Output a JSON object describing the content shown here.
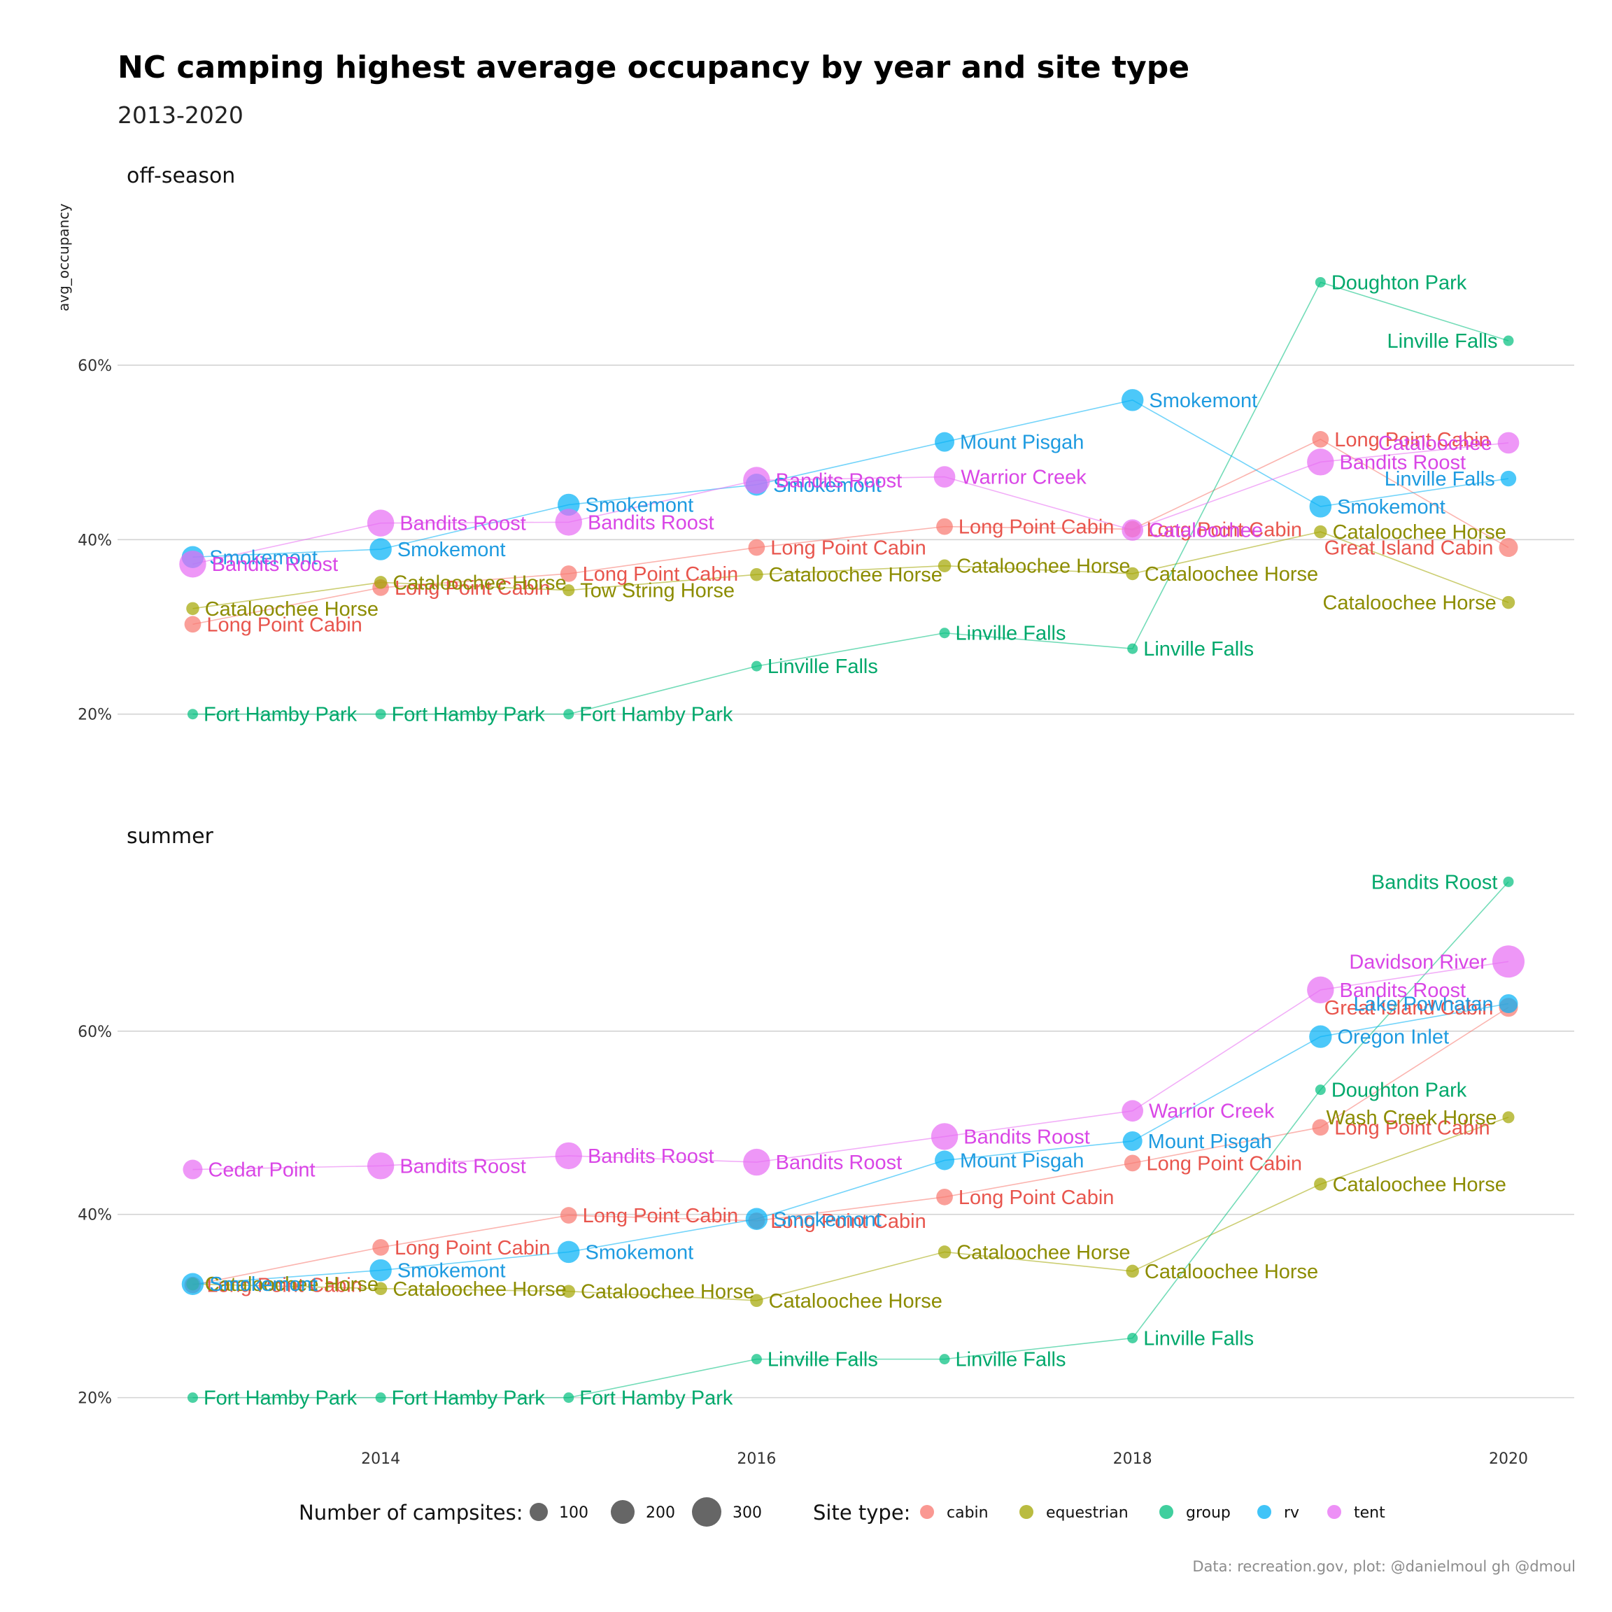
{
  "chart_data": {
    "type": "scatter",
    "title": "NC camping highest average occupancy by year and site type",
    "subtitle": "2013-2020",
    "ylabel": "avg_occupancy",
    "caption": "Data: recreation.gov, plot: @danielmoul gh @dmoul",
    "x_ticks": [
      2014,
      2016,
      2018,
      2020
    ],
    "y_ticks": [
      20,
      40,
      60
    ],
    "y_tick_labels": [
      "20%",
      "40%",
      "60%"
    ],
    "xlim": [
      2012.6,
      2020.35
    ],
    "colors": {
      "cabin": "#F8766D",
      "equestrian": "#A3A500",
      "group": "#00BF7D",
      "rv": "#00B0F6",
      "tent": "#E76BF3"
    },
    "label_colors": {
      "cabin": "#E8554D",
      "equestrian": "#8C8C00",
      "group": "#00A86B",
      "rv": "#1E9BE0",
      "tent": "#D946E6"
    },
    "legend": {
      "size_title": "Number of campsites:",
      "size_levels": [
        100,
        200,
        300
      ],
      "color_title": "Site type:",
      "site_types": [
        "cabin",
        "equestrian",
        "group",
        "rv",
        "tent"
      ]
    },
    "panels": [
      {
        "name": "off-season",
        "ylim": [
          13,
          79
        ],
        "series": [
          {
            "type": "cabin",
            "points": [
              {
                "x": 2013,
                "y": 30.3,
                "label": "Long Point Cabin",
                "size": 60
              },
              {
                "x": 2014,
                "y": 34.5,
                "label": "Long Point Cabin",
                "size": 60
              },
              {
                "x": 2015,
                "y": 36.1,
                "label": "Long Point Cabin",
                "size": 60
              },
              {
                "x": 2016,
                "y": 39.1,
                "label": "Long Point Cabin",
                "size": 60
              },
              {
                "x": 2017,
                "y": 41.5,
                "label": "Long Point Cabin",
                "size": 60
              },
              {
                "x": 2018,
                "y": 41.2,
                "label": "Long Point Cabin",
                "size": 60
              },
              {
                "x": 2019,
                "y": 51.5,
                "label": "Long Point Cabin",
                "size": 60
              },
              {
                "x": 2020,
                "y": 39.1,
                "label": "Great Island Cabin",
                "size": 90
              }
            ]
          },
          {
            "type": "equestrian",
            "points": [
              {
                "x": 2013,
                "y": 32.1,
                "label": "Cataloochee Horse",
                "size": 25
              },
              {
                "x": 2014,
                "y": 35.1,
                "label": "Cataloochee Horse",
                "size": 25
              },
              {
                "x": 2015,
                "y": 34.2,
                "label": "Tow String Horse",
                "size": 18
              },
              {
                "x": 2016,
                "y": 36.0,
                "label": "Cataloochee Horse",
                "size": 25
              },
              {
                "x": 2017,
                "y": 37.0,
                "label": "Cataloochee Horse",
                "size": 25
              },
              {
                "x": 2018,
                "y": 36.1,
                "label": "Cataloochee Horse",
                "size": 25
              },
              {
                "x": 2019,
                "y": 40.9,
                "label": "Cataloochee Horse",
                "size": 25
              },
              {
                "x": 2020,
                "y": 32.8,
                "label": "Cataloochee Horse",
                "size": 25
              }
            ]
          },
          {
            "type": "group",
            "points": [
              {
                "x": 2013,
                "y": 20.0,
                "label": "Fort Hamby Park",
                "size": 10
              },
              {
                "x": 2014,
                "y": 20.0,
                "label": "Fort Hamby Park",
                "size": 10
              },
              {
                "x": 2015,
                "y": 20.0,
                "label": "Fort Hamby Park",
                "size": 10
              },
              {
                "x": 2016,
                "y": 25.5,
                "label": "Linville Falls",
                "size": 10
              },
              {
                "x": 2017,
                "y": 29.3,
                "label": "Linville Falls",
                "size": 10
              },
              {
                "x": 2018,
                "y": 27.5,
                "label": "Linville Falls",
                "size": 10
              },
              {
                "x": 2019,
                "y": 69.5,
                "label": "Doughton Park",
                "size": 10
              },
              {
                "x": 2020,
                "y": 62.8,
                "label": "Linville Falls",
                "size": 10
              }
            ]
          },
          {
            "type": "rv",
            "points": [
              {
                "x": 2013,
                "y": 38.0,
                "label": "Smokemont",
                "size": 140
              },
              {
                "x": 2014,
                "y": 38.9,
                "label": "Smokemont",
                "size": 140
              },
              {
                "x": 2015,
                "y": 44.0,
                "label": "Smokemont",
                "size": 140
              },
              {
                "x": 2016,
                "y": 46.3,
                "label": "Smokemont",
                "size": 140
              },
              {
                "x": 2017,
                "y": 51.2,
                "label": "Mount Pisgah",
                "size": 100
              },
              {
                "x": 2018,
                "y": 56.0,
                "label": "Smokemont",
                "size": 140
              },
              {
                "x": 2019,
                "y": 43.8,
                "label": "Smokemont",
                "size": 140
              },
              {
                "x": 2020,
                "y": 47.0,
                "label": "Linville Falls",
                "size": 50
              }
            ]
          },
          {
            "type": "tent",
            "points": [
              {
                "x": 2013,
                "y": 37.2,
                "label": "Bandits Roost",
                "size": 240
              },
              {
                "x": 2014,
                "y": 41.9,
                "label": "Bandits Roost",
                "size": 240
              },
              {
                "x": 2015,
                "y": 42.0,
                "label": "Bandits Roost",
                "size": 240
              },
              {
                "x": 2016,
                "y": 46.8,
                "label": "Bandits Roost",
                "size": 240
              },
              {
                "x": 2017,
                "y": 47.2,
                "label": "Warrior Creek",
                "size": 130
              },
              {
                "x": 2018,
                "y": 41.1,
                "label": "Cataloochee",
                "size": 130
              },
              {
                "x": 2019,
                "y": 48.9,
                "label": "Bandits Roost",
                "size": 240
              },
              {
                "x": 2020,
                "y": 51.1,
                "label": "Cataloochee",
                "size": 130
              }
            ]
          }
        ]
      },
      {
        "name": "summer",
        "ylim": [
          16,
          79
        ],
        "series": [
          {
            "type": "cabin",
            "points": [
              {
                "x": 2013,
                "y": 32.3,
                "label": "Long Point Cabin",
                "size": 60
              },
              {
                "x": 2014,
                "y": 36.4,
                "label": "Long Point Cabin",
                "size": 60
              },
              {
                "x": 2015,
                "y": 39.9,
                "label": "Long Point Cabin",
                "size": 60
              },
              {
                "x": 2016,
                "y": 39.3,
                "label": "Long Point Cabin",
                "size": 60
              },
              {
                "x": 2017,
                "y": 41.9,
                "label": "Long Point Cabin",
                "size": 60
              },
              {
                "x": 2018,
                "y": 45.6,
                "label": "Long Point Cabin",
                "size": 60
              },
              {
                "x": 2019,
                "y": 49.5,
                "label": "Long Point Cabin",
                "size": 60
              },
              {
                "x": 2020,
                "y": 62.6,
                "label": "Great Island Cabin",
                "size": 90
              }
            ]
          },
          {
            "type": "equestrian",
            "points": [
              {
                "x": 2013,
                "y": 32.4,
                "label": "Cataloochee Horse",
                "size": 25
              },
              {
                "x": 2014,
                "y": 31.9,
                "label": "Cataloochee Horse",
                "size": 25
              },
              {
                "x": 2015,
                "y": 31.6,
                "label": "Cataloochee Horse",
                "size": 25
              },
              {
                "x": 2016,
                "y": 30.6,
                "label": "Cataloochee Horse",
                "size": 25
              },
              {
                "x": 2017,
                "y": 35.9,
                "label": "Cataloochee Horse",
                "size": 25
              },
              {
                "x": 2018,
                "y": 33.8,
                "label": "Cataloochee Horse",
                "size": 25
              },
              {
                "x": 2019,
                "y": 43.3,
                "label": "Cataloochee Horse",
                "size": 25
              },
              {
                "x": 2020,
                "y": 50.6,
                "label": "Wash Creek Horse",
                "size": 18
              }
            ]
          },
          {
            "type": "group",
            "points": [
              {
                "x": 2013,
                "y": 20.0,
                "label": "Fort Hamby Park",
                "size": 10
              },
              {
                "x": 2014,
                "y": 20.0,
                "label": "Fort Hamby Park",
                "size": 10
              },
              {
                "x": 2015,
                "y": 20.0,
                "label": "Fort Hamby Park",
                "size": 10
              },
              {
                "x": 2016,
                "y": 24.2,
                "label": "Linville Falls",
                "size": 10
              },
              {
                "x": 2017,
                "y": 24.2,
                "label": "Linville Falls",
                "size": 10
              },
              {
                "x": 2018,
                "y": 26.5,
                "label": "Linville Falls",
                "size": 10
              },
              {
                "x": 2019,
                "y": 53.6,
                "label": "Doughton Park",
                "size": 10
              },
              {
                "x": 2020,
                "y": 76.3,
                "label": "Bandits Roost",
                "size": 10
              }
            ]
          },
          {
            "type": "rv",
            "points": [
              {
                "x": 2013,
                "y": 32.4,
                "label": "Smokemont",
                "size": 140
              },
              {
                "x": 2014,
                "y": 33.9,
                "label": "Smokemont",
                "size": 140
              },
              {
                "x": 2015,
                "y": 35.9,
                "label": "Smokemont",
                "size": 140
              },
              {
                "x": 2016,
                "y": 39.5,
                "label": "Smokemont",
                "size": 140
              },
              {
                "x": 2017,
                "y": 45.9,
                "label": "Mount Pisgah",
                "size": 100
              },
              {
                "x": 2018,
                "y": 48.0,
                "label": "Mount Pisgah",
                "size": 100
              },
              {
                "x": 2019,
                "y": 59.4,
                "label": "Oregon Inlet",
                "size": 150
              },
              {
                "x": 2020,
                "y": 63.0,
                "label": "Lake Powhatan",
                "size": 90
              }
            ]
          },
          {
            "type": "tent",
            "points": [
              {
                "x": 2013,
                "y": 44.9,
                "label": "Cedar Point",
                "size": 100
              },
              {
                "x": 2014,
                "y": 45.3,
                "label": "Bandits Roost",
                "size": 240
              },
              {
                "x": 2015,
                "y": 46.4,
                "label": "Bandits Roost",
                "size": 240
              },
              {
                "x": 2016,
                "y": 45.7,
                "label": "Bandits Roost",
                "size": 240
              },
              {
                "x": 2017,
                "y": 48.5,
                "label": "Bandits Roost",
                "size": 240
              },
              {
                "x": 2018,
                "y": 51.3,
                "label": "Warrior Creek",
                "size": 130
              },
              {
                "x": 2019,
                "y": 64.5,
                "label": "Bandits Roost",
                "size": 240
              },
              {
                "x": 2020,
                "y": 67.6,
                "label": "Davidson River",
                "size": 380
              }
            ]
          }
        ]
      }
    ]
  }
}
